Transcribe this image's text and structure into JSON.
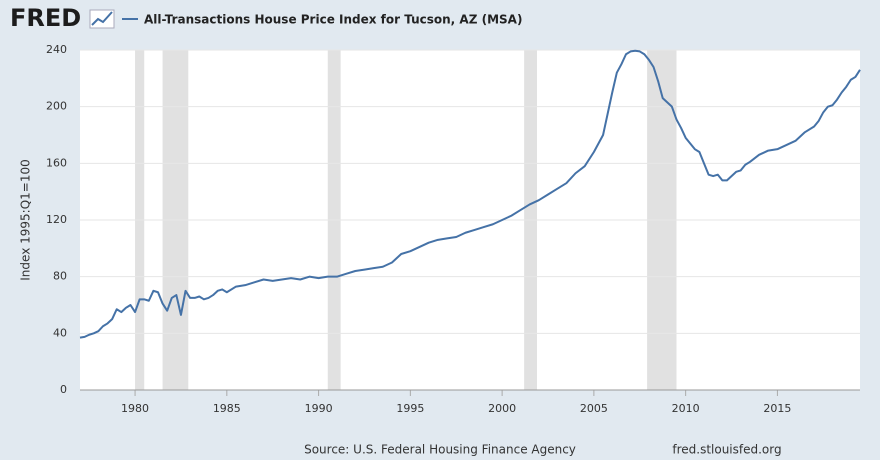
{
  "logo": "FRED",
  "chart_data": {
    "type": "line",
    "title": "All-Transactions House Price Index for Tucson, AZ (MSA)",
    "ylabel": "Index 1995:Q1=100",
    "source": "Source: U.S. Federal Housing Finance Agency",
    "source_url": "fred.stlouisfed.org",
    "xlim": [
      1977.0,
      2019.5
    ],
    "xticks": [
      1980,
      1985,
      1990,
      1995,
      2000,
      2005,
      2010,
      2015
    ],
    "ylim": [
      0,
      240
    ],
    "yticks": [
      0,
      40,
      80,
      120,
      160,
      200,
      240
    ],
    "grid": true,
    "recessions": [
      {
        "start": 1980.0,
        "end": 1980.5
      },
      {
        "start": 1981.5,
        "end": 1982.9
      },
      {
        "start": 1990.5,
        "end": 1991.2
      },
      {
        "start": 2001.2,
        "end": 2001.9
      },
      {
        "start": 2007.9,
        "end": 2009.5
      }
    ],
    "x": [
      1977.0,
      1977.25,
      1977.5,
      1977.75,
      1978.0,
      1978.25,
      1978.5,
      1978.75,
      1979.0,
      1979.25,
      1979.5,
      1979.75,
      1980.0,
      1980.25,
      1980.5,
      1980.75,
      1981.0,
      1981.25,
      1981.5,
      1981.75,
      1982.0,
      1982.25,
      1982.5,
      1982.75,
      1983.0,
      1983.25,
      1983.5,
      1983.75,
      1984.0,
      1984.25,
      1984.5,
      1984.75,
      1985.0,
      1985.5,
      1986.0,
      1986.5,
      1987.0,
      1987.5,
      1988.0,
      1988.5,
      1989.0,
      1989.5,
      1990.0,
      1990.5,
      1991.0,
      1991.5,
      1992.0,
      1992.5,
      1993.0,
      1993.5,
      1994.0,
      1994.5,
      1995.0,
      1995.5,
      1996.0,
      1996.5,
      1997.0,
      1997.5,
      1998.0,
      1998.5,
      1999.0,
      1999.5,
      2000.0,
      2000.5,
      2001.0,
      2001.5,
      2002.0,
      2002.5,
      2003.0,
      2003.5,
      2004.0,
      2004.5,
      2005.0,
      2005.5,
      2005.75,
      2006.0,
      2006.25,
      2006.5,
      2006.75,
      2007.0,
      2007.25,
      2007.5,
      2007.75,
      2008.0,
      2008.25,
      2008.5,
      2008.75,
      2009.0,
      2009.25,
      2009.5,
      2009.75,
      2010.0,
      2010.5,
      2010.75,
      2011.0,
      2011.25,
      2011.5,
      2011.75,
      2012.0,
      2012.25,
      2012.5,
      2012.75,
      2013.0,
      2013.25,
      2013.5,
      2014.0,
      2014.5,
      2015.0,
      2015.5,
      2016.0,
      2016.5,
      2017.0,
      2017.25,
      2017.5,
      2017.75,
      2018.0,
      2018.25,
      2018.5,
      2018.75,
      2019.0,
      2019.25,
      2019.5
    ],
    "series": [
      {
        "name": "All-Transactions House Price Index for Tucson, AZ (MSA)",
        "color": "#4572a7",
        "values": [
          37,
          37.5,
          39,
          40,
          41.5,
          45,
          47,
          50,
          57,
          55,
          58,
          60,
          55,
          64,
          64,
          63,
          70,
          69,
          61,
          56,
          65,
          67,
          53,
          70,
          65,
          65,
          66,
          64,
          65,
          67,
          70,
          71,
          69,
          73,
          74,
          76,
          78,
          77,
          78,
          79,
          78,
          80,
          79,
          80,
          80,
          82,
          84,
          85,
          86,
          87,
          90,
          96,
          98,
          101,
          104,
          106,
          107,
          108,
          111,
          113,
          115,
          117,
          120,
          123,
          127,
          131,
          134,
          138,
          142,
          146,
          153,
          158,
          168,
          180,
          195,
          210,
          224,
          230,
          237,
          239,
          239.5,
          239,
          237,
          233,
          228,
          218,
          206,
          203,
          200,
          191,
          185,
          178,
          170,
          168,
          160,
          152,
          151,
          152,
          148,
          148,
          151,
          154,
          155,
          159,
          161,
          166,
          169,
          170,
          173,
          176,
          182,
          186,
          190,
          196,
          200,
          201,
          205,
          210,
          214,
          219,
          221,
          226
        ]
      }
    ]
  }
}
